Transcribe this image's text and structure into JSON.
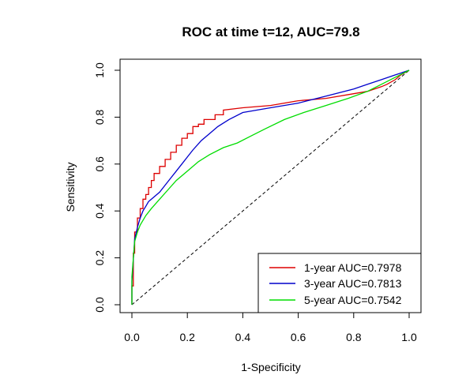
{
  "chart_data": {
    "type": "line",
    "title": "ROC at time t=12, AUC=79.8",
    "xlabel": "1-Specificity",
    "ylabel": "Sensitivity",
    "xlim": [
      0,
      1
    ],
    "ylim": [
      0,
      1
    ],
    "x_ticks": [
      "0.0",
      "0.2",
      "0.4",
      "0.6",
      "0.8",
      "1.0"
    ],
    "y_ticks": [
      "0.0",
      "0.2",
      "0.4",
      "0.6",
      "0.8",
      "1.0"
    ],
    "grid": false,
    "legend_position": "bottom-right",
    "reference_line": {
      "style": "dashed",
      "from": [
        0,
        0
      ],
      "to": [
        1,
        1
      ],
      "color": "#000000"
    },
    "series": [
      {
        "name": "1-year AUC=0.7978",
        "color": "#dd0000",
        "x": [
          0,
          0,
          0.005,
          0.005,
          0.01,
          0.01,
          0.02,
          0.02,
          0.03,
          0.03,
          0.04,
          0.04,
          0.05,
          0.05,
          0.06,
          0.06,
          0.07,
          0.07,
          0.08,
          0.08,
          0.1,
          0.1,
          0.12,
          0.12,
          0.14,
          0.14,
          0.16,
          0.16,
          0.18,
          0.18,
          0.2,
          0.2,
          0.22,
          0.22,
          0.24,
          0.24,
          0.26,
          0.26,
          0.3,
          0.3,
          0.33,
          0.33,
          0.4,
          0.5,
          0.6,
          0.7,
          0.8,
          0.85,
          0.9,
          0.92,
          0.95,
          0.97,
          1.0
        ],
        "y": [
          0,
          0.08,
          0.08,
          0.22,
          0.22,
          0.31,
          0.31,
          0.37,
          0.37,
          0.41,
          0.41,
          0.45,
          0.45,
          0.47,
          0.47,
          0.5,
          0.5,
          0.53,
          0.53,
          0.56,
          0.56,
          0.59,
          0.59,
          0.62,
          0.62,
          0.65,
          0.65,
          0.68,
          0.68,
          0.71,
          0.71,
          0.73,
          0.73,
          0.76,
          0.76,
          0.77,
          0.77,
          0.79,
          0.79,
          0.81,
          0.81,
          0.83,
          0.84,
          0.85,
          0.87,
          0.88,
          0.9,
          0.91,
          0.93,
          0.94,
          0.96,
          0.98,
          1.0
        ]
      },
      {
        "name": "3-year AUC=0.7813",
        "color": "#0000cc",
        "x": [
          0,
          0,
          0.01,
          0.02,
          0.03,
          0.04,
          0.05,
          0.06,
          0.08,
          0.1,
          0.12,
          0.14,
          0.16,
          0.18,
          0.2,
          0.22,
          0.25,
          0.28,
          0.31,
          0.35,
          0.4,
          0.5,
          0.6,
          0.7,
          0.8,
          0.85,
          0.9,
          0.95,
          1.0
        ],
        "y": [
          0,
          0.1,
          0.28,
          0.33,
          0.37,
          0.4,
          0.42,
          0.44,
          0.46,
          0.48,
          0.51,
          0.54,
          0.57,
          0.6,
          0.63,
          0.66,
          0.7,
          0.73,
          0.76,
          0.79,
          0.82,
          0.84,
          0.86,
          0.89,
          0.92,
          0.94,
          0.96,
          0.98,
          1.0
        ]
      },
      {
        "name": "5-year AUC=0.7542",
        "color": "#00dd00",
        "x": [
          0,
          0,
          0.01,
          0.02,
          0.03,
          0.05,
          0.07,
          0.1,
          0.13,
          0.16,
          0.2,
          0.24,
          0.28,
          0.33,
          0.38,
          0.43,
          0.48,
          0.55,
          0.62,
          0.7,
          0.78,
          0.85,
          0.9,
          0.95,
          1.0
        ],
        "y": [
          0,
          0.12,
          0.27,
          0.31,
          0.34,
          0.38,
          0.41,
          0.45,
          0.49,
          0.53,
          0.57,
          0.61,
          0.64,
          0.67,
          0.69,
          0.72,
          0.75,
          0.79,
          0.82,
          0.85,
          0.88,
          0.91,
          0.94,
          0.97,
          1.0
        ]
      }
    ]
  }
}
